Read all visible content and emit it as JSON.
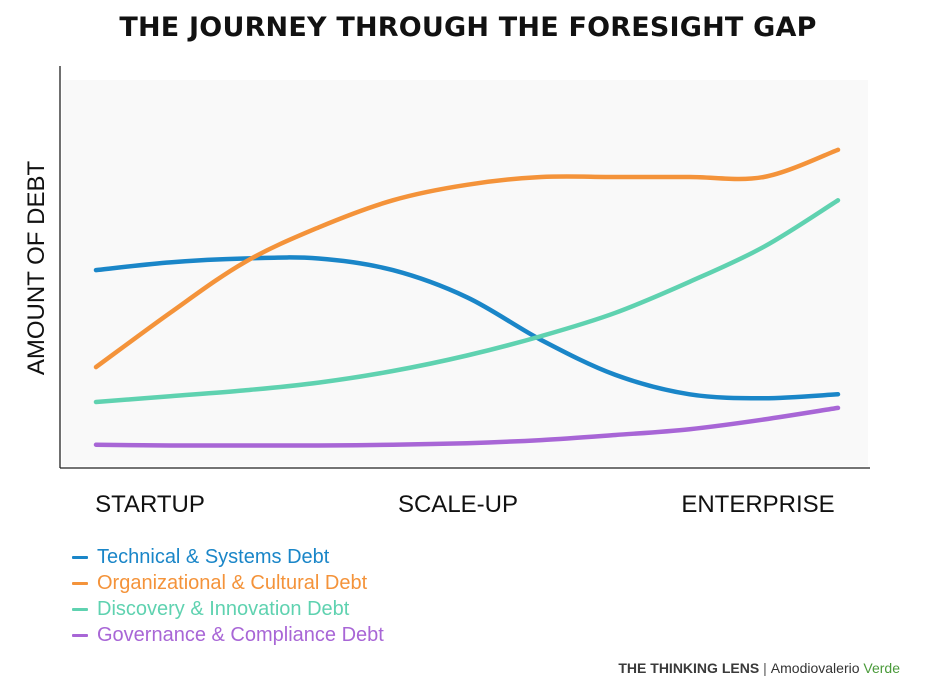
{
  "chart_data": {
    "type": "line",
    "title": "THE JOURNEY THROUGH THE FORESIGHT GAP",
    "xlabel": "",
    "ylabel": "AMOUNT OF DEBT",
    "categories": [
      "STARTUP",
      "SCALE-UP",
      "ENTERPRISE"
    ],
    "x": [
      0,
      1,
      2,
      3,
      4,
      5,
      6,
      7,
      8,
      9,
      10
    ],
    "xlim": [
      0,
      10
    ],
    "ylim": [
      0,
      100
    ],
    "grid": false,
    "legend_position": "bottom-left",
    "series": [
      {
        "name": "Technical & Systems Debt",
        "color": "#1a86c8",
        "values": [
          51,
          53,
          54,
          54,
          51,
          44,
          33,
          24,
          19,
          18,
          19
        ]
      },
      {
        "name": "Organizational & Cultural Debt",
        "color": "#f4933a",
        "values": [
          26,
          40,
          53,
          62,
          69,
          73,
          75,
          75,
          75,
          75,
          82
        ]
      },
      {
        "name": "Discovery & Innovation Debt",
        "color": "#5fd2b0",
        "values": [
          17,
          18.5,
          20,
          22,
          25,
          29,
          34,
          40,
          48,
          57,
          69
        ]
      },
      {
        "name": "Governance & Compliance Debt",
        "color": "#a866d6",
        "values": [
          6,
          5.8,
          5.8,
          5.8,
          6,
          6.4,
          7.2,
          8.5,
          10,
          12.5,
          15.5
        ]
      }
    ]
  },
  "footer": {
    "brand": "THE THINKING LENS",
    "separator": "|",
    "author": "Amodiovalerio",
    "author_accent": "Verde"
  }
}
